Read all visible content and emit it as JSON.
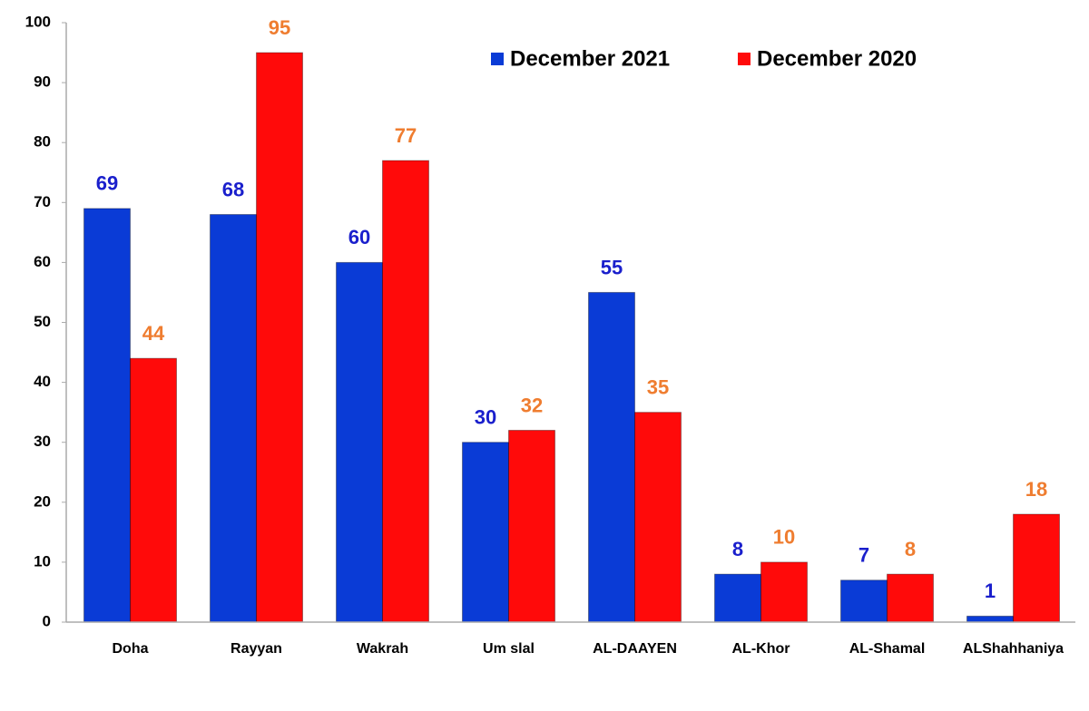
{
  "chart_data": {
    "type": "bar",
    "categories": [
      "Doha",
      "Rayyan",
      "Wakrah",
      "Um slal",
      "AL-DAAYEN",
      "AL-Khor",
      "AL-Shamal",
      "ALShahhaniya"
    ],
    "series": [
      {
        "name": "December 2021",
        "color": "#0a3bd6",
        "label_color": "#1a1fcc",
        "values": [
          69,
          68,
          60,
          30,
          55,
          8,
          7,
          1
        ]
      },
      {
        "name": "December 2020",
        "color": "#ff0a0a",
        "label_color": "#ef7d30",
        "values": [
          44,
          95,
          77,
          32,
          35,
          10,
          8,
          18
        ]
      }
    ],
    "ylim": [
      0,
      100
    ],
    "yticks": [
      0,
      10,
      20,
      30,
      40,
      50,
      60,
      70,
      80,
      90,
      100
    ],
    "grid": false,
    "legend": "top"
  }
}
